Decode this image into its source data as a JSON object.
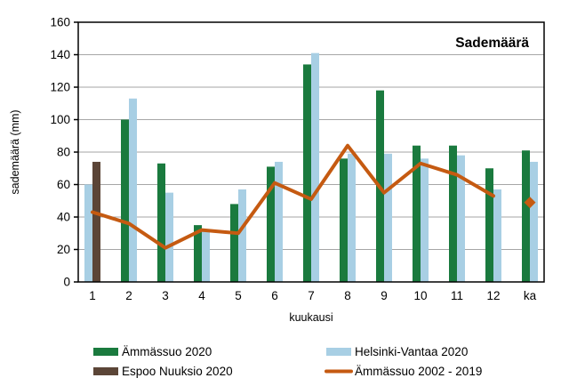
{
  "title": "Sademäärä",
  "ylabel": "sademäärä (mm)",
  "xlabel": "kuukausi",
  "colors": {
    "green": "#1a7a3e",
    "blue": "#a8cfe4",
    "brown": "#5b4537",
    "orange": "#c55a11",
    "grid": "#a6a6a6",
    "axis": "#000000"
  },
  "chart_data": {
    "type": "bar",
    "title": "Sademäärä",
    "xlabel": "kuukausi",
    "ylabel": "sademäärä (mm)",
    "categories": [
      "1",
      "2",
      "3",
      "4",
      "5",
      "6",
      "7",
      "8",
      "9",
      "10",
      "11",
      "12",
      "ka"
    ],
    "yticks": [
      0,
      20,
      40,
      60,
      80,
      100,
      120,
      140,
      160
    ],
    "ylim": [
      0,
      160
    ],
    "grid": true,
    "legend_position": "bottom",
    "series": [
      {
        "name": "Ämmässuo 2020",
        "type": "bar",
        "color_key": "green",
        "values": [
          null,
          100,
          73,
          35,
          48,
          71,
          134,
          76,
          118,
          84,
          84,
          70,
          81
        ]
      },
      {
        "name": "Helsinki-Vantaa 2020",
        "type": "bar",
        "color_key": "blue",
        "values": [
          60,
          113,
          55,
          32,
          57,
          74,
          141,
          79,
          79,
          76,
          78,
          57,
          74
        ]
      },
      {
        "name": "Espoo Nuuksio 2020",
        "type": "bar",
        "color_key": "brown",
        "values": [
          74,
          null,
          null,
          null,
          null,
          null,
          null,
          null,
          null,
          null,
          null,
          null,
          null
        ]
      },
      {
        "name": "Ämmässuo 2002 - 2019",
        "type": "line",
        "color_key": "orange",
        "values": [
          43,
          36,
          21,
          32,
          30,
          61,
          51,
          84,
          55,
          73,
          66,
          53,
          null
        ],
        "ka_marker_value": 49
      }
    ]
  }
}
